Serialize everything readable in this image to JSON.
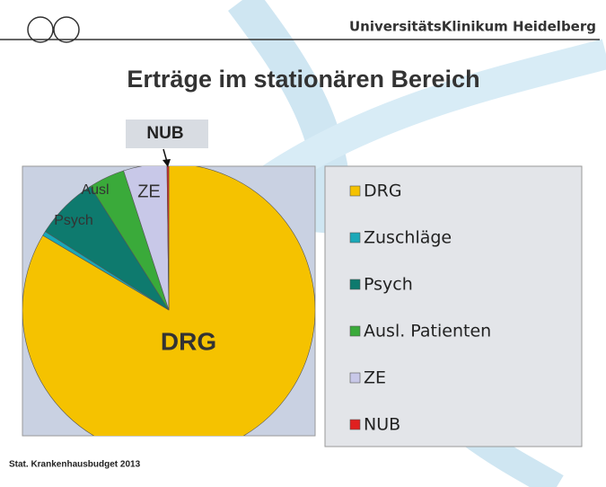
{
  "header": {
    "institution": "UniversitätsKlinikum Heidelberg"
  },
  "chart_data": {
    "type": "pie",
    "title": "Erträge im stationären Bereich",
    "categories": [
      "DRG",
      "Zuschläge",
      "Psych",
      "Ausl. Patienten",
      "ZE",
      "NUB"
    ],
    "values": [
      83.5,
      0.5,
      7,
      4,
      4.8,
      0.2
    ],
    "colors": [
      "#f5c200",
      "#1aa8b8",
      "#0e7a6e",
      "#3aaa3a",
      "#c8c8e8",
      "#e02020"
    ],
    "slice_labels": [
      "DRG",
      null,
      "Psych",
      "Ausl",
      "ZE",
      "NUB"
    ],
    "legend": "right"
  },
  "footer": {
    "source": "Stat. Krankenhausbudget 2013"
  }
}
